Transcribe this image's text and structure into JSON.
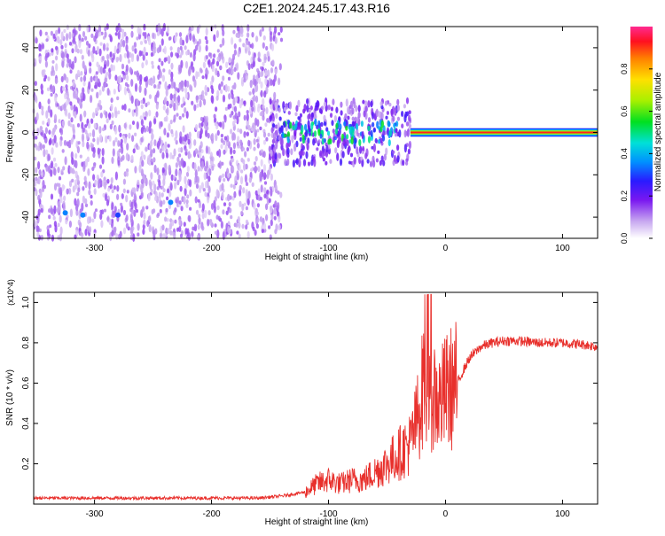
{
  "figure_title": "C2E1.2024.245.17.43.R16",
  "colors": {
    "snr_line": "#e8302c",
    "frame": "#000000",
    "carrier": "#ff2020"
  },
  "chart_data": [
    {
      "type": "heatmap",
      "title": "C2E1.2024.245.17.43.R16",
      "xlabel": "Height of straight line (km)",
      "ylabel": "Frequency (Hz)",
      "xlim": [
        -352,
        130
      ],
      "ylim": [
        -50,
        50
      ],
      "x_ticks": [
        -300,
        -200,
        -100,
        0,
        100
      ],
      "y_ticks": [
        -40,
        -20,
        0,
        20,
        40
      ],
      "colorbar": {
        "label": "Normalized spectral amplitude",
        "range": [
          0,
          1
        ],
        "ticks": [
          0.0,
          0.2,
          0.4,
          0.6,
          0.8
        ]
      },
      "regions": [
        {
          "x_range": [
            -352,
            -140
          ],
          "freq_range": [
            -50,
            50
          ],
          "amplitude": 0.12
        },
        {
          "x_range": [
            -150,
            -30
          ],
          "freq_range": [
            -15,
            15
          ],
          "amplitude": 0.2
        },
        {
          "x_range": [
            -140,
            -40
          ],
          "freq_range": [
            -5,
            5
          ],
          "amplitude": 0.45
        },
        {
          "x_range": [
            -30,
            130
          ],
          "freq_range": [
            -1,
            1
          ],
          "amplitude": 1.0
        }
      ],
      "hotspots": [
        {
          "x": -325,
          "freq": -38,
          "amplitude": 0.35
        },
        {
          "x": -310,
          "freq": -39,
          "amplitude": 0.35
        },
        {
          "x": -280,
          "freq": -39,
          "amplitude": 0.3
        },
        {
          "x": -235,
          "freq": -33,
          "amplitude": 0.35
        }
      ]
    },
    {
      "type": "line",
      "title": "",
      "xlabel": "Height of straight line (km)",
      "ylabel": "SNR (10 * v/v)",
      "y_multiplier_label": "(x10^4)",
      "xlim": [
        -352,
        130
      ],
      "ylim": [
        0,
        1.05
      ],
      "x_ticks": [
        -300,
        -200,
        -100,
        0,
        100
      ],
      "y_ticks": [
        0.2,
        0.4,
        0.6,
        0.8,
        1.0
      ],
      "series": [
        {
          "name": "",
          "x": [
            -352,
            -300,
            -250,
            -200,
            -160,
            -140,
            -120,
            -110,
            -100,
            -90,
            -80,
            -70,
            -60,
            -50,
            -40,
            -30,
            -25,
            -20,
            -15,
            -10,
            -5,
            0,
            10,
            20,
            30,
            40,
            50,
            60,
            80,
            100,
            120,
            130
          ],
          "y": [
            0.03,
            0.03,
            0.03,
            0.03,
            0.03,
            0.04,
            0.06,
            0.1,
            0.12,
            0.1,
            0.12,
            0.12,
            0.16,
            0.2,
            0.25,
            0.3,
            0.4,
            0.55,
            0.6,
            0.55,
            0.5,
            0.55,
            0.6,
            0.72,
            0.78,
            0.8,
            0.81,
            0.81,
            0.8,
            0.8,
            0.79,
            0.78
          ]
        }
      ]
    }
  ]
}
